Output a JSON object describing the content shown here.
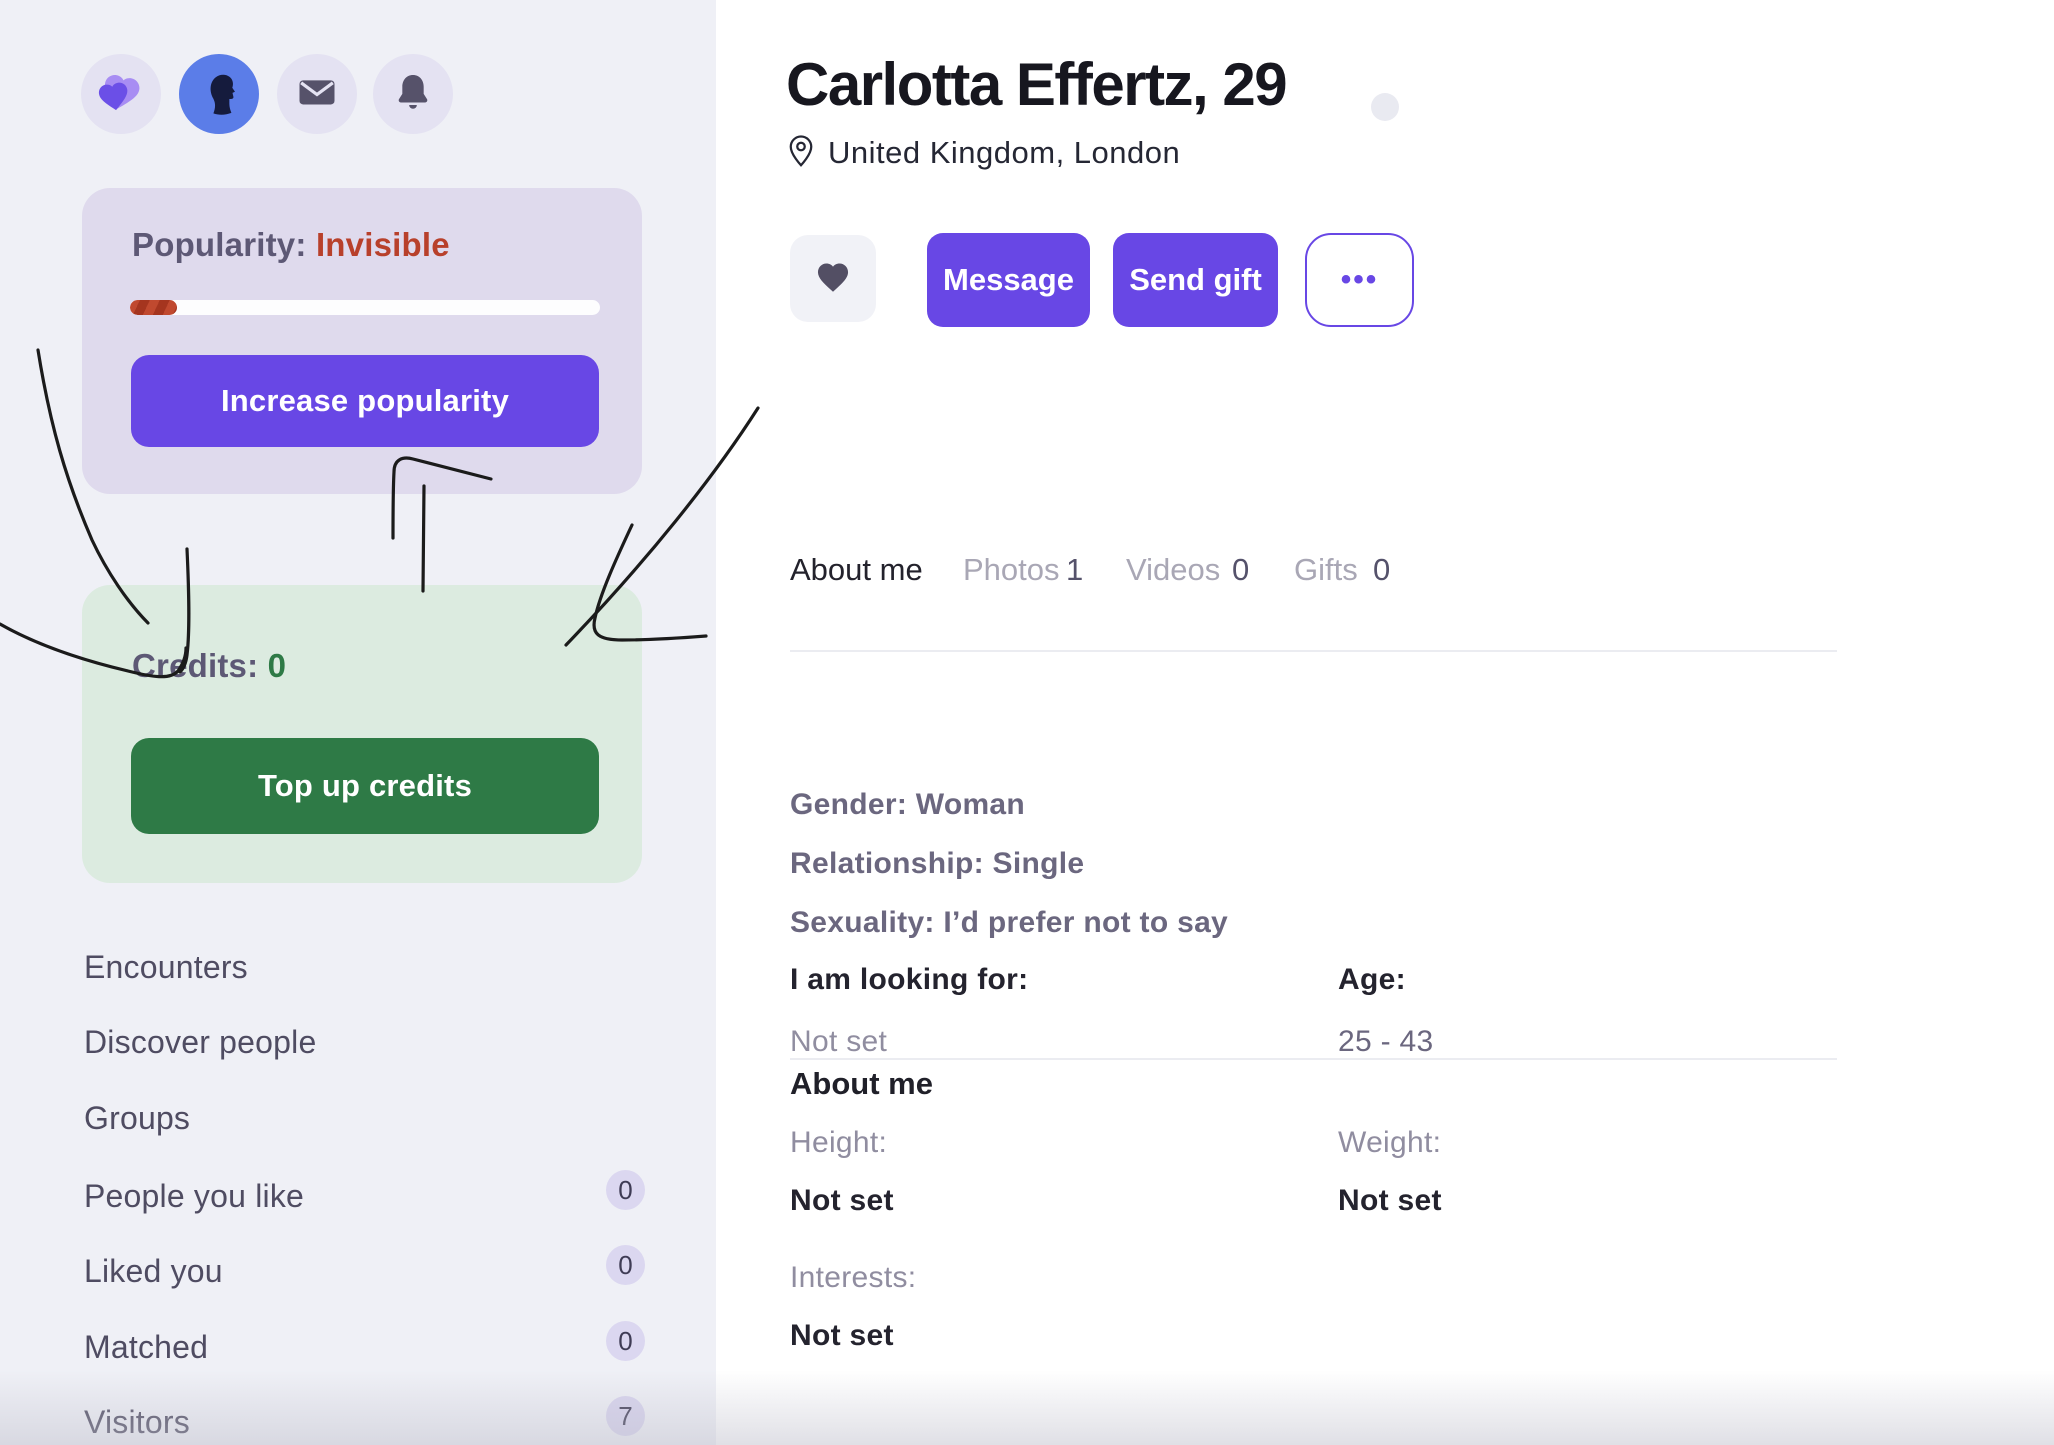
{
  "sidebar": {
    "icons": {
      "logo": "brand-heart",
      "avatar": "user-avatar",
      "mail": "messages",
      "bell": "notifications"
    },
    "popularity": {
      "label": "Popularity:",
      "status": "Invisible",
      "progress_percent": 10,
      "button": "Increase popularity"
    },
    "credits": {
      "label": "Credits:",
      "value": "0",
      "button": "Top up credits"
    },
    "menu": [
      {
        "label": "Encounters",
        "badge": null
      },
      {
        "label": "Discover people",
        "badge": null
      },
      {
        "label": "Groups",
        "badge": null
      },
      {
        "label": "People you like",
        "badge": "0"
      },
      {
        "label": "Liked you",
        "badge": "0"
      },
      {
        "label": "Matched",
        "badge": "0"
      },
      {
        "label": "Visitors",
        "badge": "7"
      }
    ]
  },
  "profile": {
    "title": "Carlotta Effertz, 29",
    "location": "United Kingdom, London",
    "actions": {
      "message": "Message",
      "send_gift": "Send gift",
      "more": "•••"
    },
    "tabs": [
      {
        "label": "About me",
        "count": ""
      },
      {
        "label": "Photos",
        "count": "1"
      },
      {
        "label": "Videos",
        "count": "0"
      },
      {
        "label": "Gifts",
        "count": "0"
      }
    ],
    "attributes": [
      {
        "text": "Gender: Woman"
      },
      {
        "text": "Relationship: Single"
      },
      {
        "text": "Sexuality: I’d prefer not to say"
      }
    ],
    "looking_for": {
      "label": "I am looking for:",
      "value": "Not set"
    },
    "age": {
      "label": "Age:",
      "value": "25 - 43"
    },
    "about": {
      "heading": "About me",
      "height_label": "Height:",
      "height_value": "Not set",
      "weight_label": "Weight:",
      "weight_value": "Not set",
      "interests_label": "Interests:",
      "interests_value": "Not set"
    }
  },
  "colors": {
    "accent_purple": "#6847e5",
    "accent_green": "#2e7a46",
    "status_red": "#b8402b",
    "sidebar_bg": "#eff0f6",
    "popularity_card_bg": "#dfdaed",
    "credits_card_bg": "#dcebe0"
  }
}
